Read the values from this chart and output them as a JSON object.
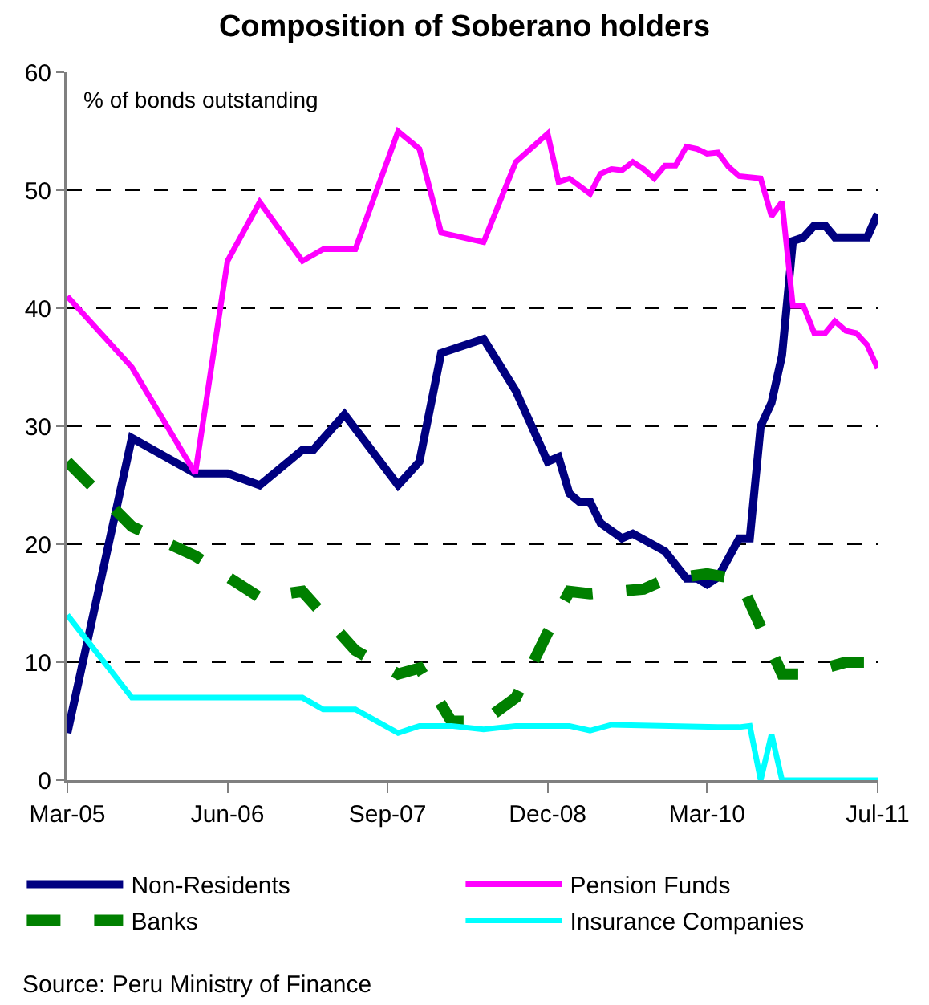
{
  "chart_data": {
    "type": "line",
    "title": "Composition of Soberano holders",
    "annotations": [
      "% of bonds outstanding",
      "Source: Peru Ministry of Finance"
    ],
    "xlim": [
      "2005-03",
      "2011-07"
    ],
    "xticks": [
      {
        "value": "2005-03",
        "label": "Mar-05"
      },
      {
        "value": "2006-06",
        "label": "Jun-06"
      },
      {
        "value": "2007-09",
        "label": "Sep-07"
      },
      {
        "value": "2008-12",
        "label": "Dec-08"
      },
      {
        "value": "2010-03",
        "label": "Mar-10"
      },
      {
        "value": "2011-07",
        "label": "Jul-11"
      }
    ],
    "ylim": [
      0,
      60
    ],
    "yticks": [
      0,
      10,
      20,
      30,
      40,
      50,
      60
    ],
    "grid": "y",
    "legend": "bottom",
    "marker": "none",
    "series": [
      {
        "name": "Non-Residents",
        "color": "#000080",
        "line_style": "solid",
        "x": [
          "2005-03",
          "2005-09",
          "2006-03",
          "2006-06",
          "2006-09",
          "2007-01",
          "2007-02",
          "2007-05",
          "2007-10",
          "2007-12",
          "2008-02",
          "2008-06",
          "2008-09",
          "2008-12",
          "2009-01",
          "2009-02",
          "2009-03",
          "2009-04",
          "2009-05",
          "2009-07",
          "2009-08",
          "2009-10",
          "2009-11",
          "2010-01",
          "2010-02",
          "2010-03",
          "2010-04",
          "2010-06",
          "2010-07",
          "2010-08",
          "2010-09",
          "2010-10",
          "2010-11",
          "2010-12",
          "2011-01",
          "2011-02",
          "2011-03",
          "2011-06",
          "2011-07"
        ],
        "values": [
          4,
          29,
          26,
          26,
          25,
          28,
          28,
          31,
          25,
          27,
          36.2,
          37.4,
          33,
          27,
          27.4,
          24.3,
          23.6,
          23.6,
          21.8,
          20.5,
          20.9,
          19.9,
          19.4,
          17.1,
          17.1,
          16.6,
          17.2,
          20.5,
          20.5,
          30,
          32,
          36,
          45.7,
          46,
          47,
          47,
          46,
          46,
          48
        ]
      },
      {
        "name": "Pension Funds",
        "color": "#ff00ff",
        "line_style": "solid",
        "x": [
          "2005-03",
          "2005-09",
          "2006-03",
          "2006-06",
          "2006-09",
          "2007-01",
          "2007-03",
          "2007-06",
          "2007-10",
          "2007-12",
          "2008-02",
          "2008-06",
          "2008-09",
          "2008-12",
          "2009-01",
          "2009-02",
          "2009-04",
          "2009-05",
          "2009-06",
          "2009-07",
          "2009-08",
          "2009-09",
          "2009-10",
          "2009-11",
          "2009-12",
          "2010-01",
          "2010-02",
          "2010-03",
          "2010-04",
          "2010-05",
          "2010-06",
          "2010-08",
          "2010-09",
          "2010-10",
          "2010-11",
          "2010-12",
          "2011-01",
          "2011-02",
          "2011-03",
          "2011-04",
          "2011-05",
          "2011-06",
          "2011-07"
        ],
        "values": [
          41,
          35,
          26,
          44,
          49,
          44,
          45,
          45,
          55,
          53.5,
          46.4,
          45.6,
          52.4,
          54.8,
          50.7,
          51,
          49.7,
          51.4,
          51.8,
          51.7,
          52.4,
          51.8,
          51,
          52.1,
          52.1,
          53.7,
          53.5,
          53.1,
          53.2,
          52,
          51.2,
          51,
          47.8,
          49,
          40.2,
          40.2,
          37.9,
          37.9,
          38.9,
          38.1,
          37.9,
          36.9,
          34.9
        ]
      },
      {
        "name": "Banks",
        "color": "#008000",
        "line_style": "dashed",
        "x": [
          "2005-03",
          "2005-09",
          "2006-03",
          "2006-09",
          "2007-01",
          "2007-06",
          "2007-10",
          "2007-12",
          "2008-03",
          "2008-06",
          "2008-09",
          "2008-12",
          "2009-02",
          "2009-04",
          "2009-09",
          "2009-11",
          "2010-03",
          "2010-06",
          "2010-08",
          "2010-10",
          "2010-12",
          "2011-04",
          "2011-07"
        ],
        "values": [
          27,
          21.5,
          19,
          15.5,
          16,
          11,
          9,
          9.5,
          5,
          5,
          7,
          12.5,
          16,
          15.8,
          16.2,
          17,
          17.5,
          17,
          13,
          9,
          9,
          10,
          10
        ]
      },
      {
        "name": "Insurance Companies",
        "color": "#00ffff",
        "line_style": "solid",
        "x": [
          "2005-03",
          "2005-09",
          "2007-01",
          "2007-03",
          "2007-06",
          "2007-10",
          "2007-12",
          "2008-03",
          "2008-06",
          "2008-09",
          "2008-12",
          "2009-02",
          "2009-04",
          "2009-06",
          "2010-04",
          "2010-06",
          "2010-07",
          "2010-08",
          "2010-09",
          "2010-10",
          "2011-07"
        ],
        "values": [
          14,
          7,
          7,
          6,
          6,
          4,
          4.6,
          4.6,
          4.3,
          4.6,
          4.6,
          4.6,
          4.2,
          4.7,
          4.5,
          4.5,
          4.6,
          0,
          3.9,
          0,
          0
        ]
      }
    ]
  }
}
